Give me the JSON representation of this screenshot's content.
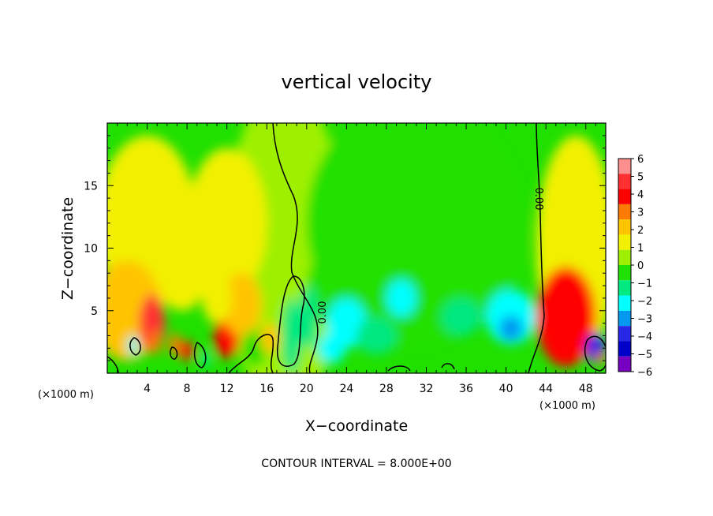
{
  "chart_data": {
    "type": "heatmap",
    "title": "vertical velocity",
    "xlabel": "X−coordinate",
    "ylabel": "Z−coordinate",
    "x_unit": "(×1000 m)",
    "z_unit": "(×1000 m)",
    "xlim": [
      0,
      50
    ],
    "ylim": [
      0,
      20
    ],
    "x_ticks": [
      4,
      8,
      12,
      16,
      20,
      24,
      28,
      32,
      36,
      40,
      44,
      48
    ],
    "x_tick_labels": [
      "4",
      "8",
      "12",
      "16",
      "20",
      "24",
      "28",
      "32",
      "36",
      "40",
      "44",
      "48"
    ],
    "y_ticks": [
      5,
      10,
      15
    ],
    "y_tick_labels": [
      "5",
      "10",
      "15"
    ],
    "colorbar": {
      "levels": [
        6,
        5,
        4,
        3,
        2,
        1,
        0,
        -1,
        -2,
        -3,
        -4,
        -5,
        -6
      ],
      "labels": [
        "6",
        "5",
        "4",
        "3",
        "2",
        "1",
        "0",
        "−1",
        "−2",
        "−3",
        "−4",
        "−5",
        "−6"
      ],
      "colors": [
        "#ff8f8f",
        "#ff3030",
        "#ff0000",
        "#ff7a00",
        "#ffc400",
        "#f2f000",
        "#9ef000",
        "#20e000",
        "#00e880",
        "#00ffff",
        "#0098f0",
        "#2828e8",
        "#0000c8",
        "#7800c0"
      ]
    },
    "contour_interval_text": "CONTOUR INTERVAL = 8.000E+00",
    "contour_labels": [
      "0.00",
      "0.00"
    ],
    "blobs": [
      {
        "x": 17.8,
        "z": 10,
        "rx": 6,
        "rz": 13,
        "w": -0.5
      },
      {
        "x": 31,
        "z": 12,
        "rx": 11,
        "rz": 10,
        "w": -1.4
      },
      {
        "x": 29,
        "z": 7,
        "rx": 9,
        "rz": 5,
        "w": -1.2
      },
      {
        "x": 47,
        "z": 10,
        "rx": 4,
        "rz": 9,
        "w": 0.7
      },
      {
        "x": 4,
        "z": 12,
        "rx": 5,
        "rz": 7,
        "w": 0.5
      },
      {
        "x": 12,
        "z": 12,
        "rx": 4,
        "rz": 6,
        "w": 0.4
      },
      {
        "x": 2,
        "z": 5,
        "rx": 3.5,
        "rz": 4,
        "w": 1.6
      },
      {
        "x": 4.5,
        "z": 4,
        "rx": 1.3,
        "rz": 2.3,
        "w": 4.4
      },
      {
        "x": 4.8,
        "z": 2.5,
        "rx": 0.6,
        "rz": 1,
        "w": 3.0
      },
      {
        "x": 2.6,
        "z": 2.2,
        "rx": 0.5,
        "rz": 0.8,
        "w": -3.4
      },
      {
        "x": 7.5,
        "z": 8,
        "rx": 2.5,
        "rz": 3,
        "w": 0.7
      },
      {
        "x": 6.8,
        "z": 2.3,
        "rx": 0.6,
        "rz": 0.9,
        "w": 2.4
      },
      {
        "x": 8,
        "z": 1.8,
        "rx": 0.7,
        "rz": 0.8,
        "w": 3.4
      },
      {
        "x": 9.8,
        "z": 1.2,
        "rx": 0.6,
        "rz": 0.7,
        "w": -2.2
      },
      {
        "x": 12,
        "z": 3,
        "rx": 1.3,
        "rz": 1.8,
        "w": 3.5
      },
      {
        "x": 13.5,
        "z": 5.5,
        "rx": 2,
        "rz": 2.5,
        "w": 1.8
      },
      {
        "x": 11,
        "z": 6,
        "rx": 1.5,
        "rz": 2,
        "w": 1.0
      },
      {
        "x": 14.8,
        "z": 2,
        "rx": 1.2,
        "rz": 1.5,
        "w": -1.6
      },
      {
        "x": 16.3,
        "z": 2.8,
        "rx": 0.9,
        "rz": 1.2,
        "w": 2.0
      },
      {
        "x": 18.5,
        "z": 3,
        "rx": 1,
        "rz": 3,
        "w": -2.4
      },
      {
        "x": 20.2,
        "z": 4.5,
        "rx": 1,
        "rz": 2.5,
        "w": -2.0
      },
      {
        "x": 24,
        "z": 4,
        "rx": 2,
        "rz": 2,
        "w": -3.6
      },
      {
        "x": 22.5,
        "z": 2,
        "rx": 1.4,
        "rz": 1.2,
        "w": -3.4
      },
      {
        "x": 29.5,
        "z": 6,
        "rx": 1.5,
        "rz": 1.5,
        "w": -3.0
      },
      {
        "x": 27,
        "z": 3,
        "rx": 2,
        "rz": 1.5,
        "w": -2.6
      },
      {
        "x": 35.5,
        "z": 4.5,
        "rx": 2,
        "rz": 1.5,
        "w": -2.8
      },
      {
        "x": 40.5,
        "z": 4.5,
        "rx": 2.5,
        "rz": 2.2,
        "w": -3.6
      },
      {
        "x": 40.5,
        "z": 3.6,
        "rx": 1.2,
        "rz": 1,
        "w": -4.5
      },
      {
        "x": 40.6,
        "z": 3.5,
        "rx": 0.6,
        "rz": 0.45,
        "w": -4.2
      },
      {
        "x": 46,
        "z": 4.5,
        "rx": 3,
        "rz": 4,
        "w": 3.5
      },
      {
        "x": 45.6,
        "z": 2.5,
        "rx": 1.4,
        "rz": 1.8,
        "w": 3.2
      },
      {
        "x": 49,
        "z": 2,
        "rx": 1,
        "rz": 1.2,
        "w": -5.0
      },
      {
        "x": 49.5,
        "z": 1.2,
        "rx": 0.5,
        "rz": 0.5,
        "w": 3.0
      }
    ]
  }
}
